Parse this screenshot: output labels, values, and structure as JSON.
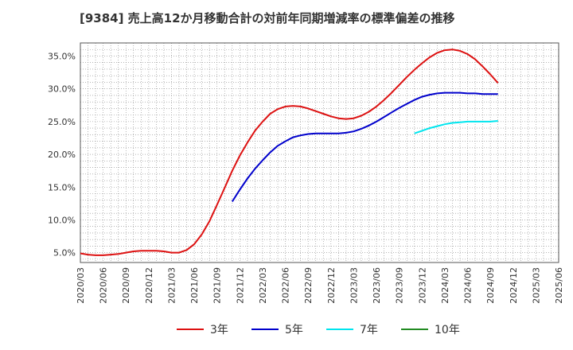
{
  "chart_data": {
    "type": "line",
    "title": "[9384]  売上高12か月移動合計の対前年同期増減率の標準偏差の推移",
    "xlabel": "",
    "ylabel": "",
    "ylim": [
      3.5,
      37.0
    ],
    "xlim": [
      "2020/03",
      "2025/06"
    ],
    "grid": true,
    "legend_position": "bottom",
    "y_ticks": [
      5.0,
      10.0,
      15.0,
      20.0,
      25.0,
      30.0,
      35.0
    ],
    "y_tick_labels": [
      "5.0%",
      "10.0%",
      "15.0%",
      "20.0%",
      "25.0%",
      "30.0%",
      "35.0%"
    ],
    "x_tick_labels": [
      "2020/03",
      "2020/06",
      "2020/09",
      "2020/12",
      "2021/03",
      "2021/06",
      "2021/09",
      "2021/12",
      "2022/03",
      "2022/06",
      "2022/09",
      "2022/12",
      "2023/03",
      "2023/06",
      "2023/09",
      "2023/12",
      "2024/03",
      "2024/06",
      "2024/09",
      "2024/12",
      "2025/03",
      "2025/06"
    ],
    "series": [
      {
        "name": "3年",
        "color": "#dd1111",
        "points": [
          [
            "2020/03",
            4.9
          ],
          [
            "2020/04",
            4.7
          ],
          [
            "2020/05",
            4.6
          ],
          [
            "2020/06",
            4.6
          ],
          [
            "2020/07",
            4.7
          ],
          [
            "2020/08",
            4.8
          ],
          [
            "2020/09",
            5.0
          ],
          [
            "2020/10",
            5.2
          ],
          [
            "2020/11",
            5.3
          ],
          [
            "2020/12",
            5.3
          ],
          [
            "2021/01",
            5.3
          ],
          [
            "2021/02",
            5.2
          ],
          [
            "2021/03",
            5.0
          ],
          [
            "2021/04",
            5.0
          ],
          [
            "2021/05",
            5.4
          ],
          [
            "2021/06",
            6.3
          ],
          [
            "2021/07",
            7.8
          ],
          [
            "2021/08",
            9.8
          ],
          [
            "2021/09",
            12.3
          ],
          [
            "2021/10",
            14.9
          ],
          [
            "2021/11",
            17.5
          ],
          [
            "2021/12",
            19.8
          ],
          [
            "2022/01",
            21.8
          ],
          [
            "2022/02",
            23.6
          ],
          [
            "2022/03",
            25.0
          ],
          [
            "2022/04",
            26.2
          ],
          [
            "2022/05",
            26.9
          ],
          [
            "2022/06",
            27.3
          ],
          [
            "2022/07",
            27.4
          ],
          [
            "2022/08",
            27.3
          ],
          [
            "2022/09",
            27.0
          ],
          [
            "2022/10",
            26.6
          ],
          [
            "2022/11",
            26.2
          ],
          [
            "2022/12",
            25.8
          ],
          [
            "2023/01",
            25.5
          ],
          [
            "2023/02",
            25.4
          ],
          [
            "2023/03",
            25.5
          ],
          [
            "2023/04",
            25.9
          ],
          [
            "2023/05",
            26.5
          ],
          [
            "2023/06",
            27.3
          ],
          [
            "2023/07",
            28.3
          ],
          [
            "2023/08",
            29.4
          ],
          [
            "2023/09",
            30.6
          ],
          [
            "2023/10",
            31.8
          ],
          [
            "2023/11",
            32.9
          ],
          [
            "2023/12",
            33.9
          ],
          [
            "2024/01",
            34.8
          ],
          [
            "2024/02",
            35.5
          ],
          [
            "2024/03",
            35.9
          ],
          [
            "2024/04",
            36.0
          ],
          [
            "2024/05",
            35.8
          ],
          [
            "2024/06",
            35.3
          ],
          [
            "2024/07",
            34.5
          ],
          [
            "2024/08",
            33.4
          ],
          [
            "2024/09",
            32.2
          ],
          [
            "2024/10",
            30.9
          ]
        ]
      },
      {
        "name": "5年",
        "color": "#0000cc",
        "points": [
          [
            "2021/11",
            12.8
          ],
          [
            "2021/12",
            14.6
          ],
          [
            "2022/01",
            16.3
          ],
          [
            "2022/02",
            17.8
          ],
          [
            "2022/03",
            19.1
          ],
          [
            "2022/04",
            20.3
          ],
          [
            "2022/05",
            21.3
          ],
          [
            "2022/06",
            22.0
          ],
          [
            "2022/07",
            22.6
          ],
          [
            "2022/08",
            22.9
          ],
          [
            "2022/09",
            23.1
          ],
          [
            "2022/10",
            23.2
          ],
          [
            "2022/11",
            23.2
          ],
          [
            "2022/12",
            23.2
          ],
          [
            "2023/01",
            23.2
          ],
          [
            "2023/02",
            23.3
          ],
          [
            "2023/03",
            23.5
          ],
          [
            "2023/04",
            23.9
          ],
          [
            "2023/05",
            24.4
          ],
          [
            "2023/06",
            25.0
          ],
          [
            "2023/07",
            25.7
          ],
          [
            "2023/08",
            26.4
          ],
          [
            "2023/09",
            27.1
          ],
          [
            "2023/10",
            27.7
          ],
          [
            "2023/11",
            28.3
          ],
          [
            "2023/12",
            28.8
          ],
          [
            "2024/01",
            29.1
          ],
          [
            "2024/02",
            29.3
          ],
          [
            "2024/03",
            29.4
          ],
          [
            "2024/04",
            29.4
          ],
          [
            "2024/05",
            29.4
          ],
          [
            "2024/06",
            29.3
          ],
          [
            "2024/07",
            29.3
          ],
          [
            "2024/08",
            29.2
          ],
          [
            "2024/09",
            29.2
          ],
          [
            "2024/10",
            29.2
          ]
        ]
      },
      {
        "name": "7年",
        "color": "#00e5ee",
        "points": [
          [
            "2023/11",
            23.2
          ],
          [
            "2023/12",
            23.6
          ],
          [
            "2024/01",
            24.0
          ],
          [
            "2024/02",
            24.3
          ],
          [
            "2024/03",
            24.6
          ],
          [
            "2024/04",
            24.8
          ],
          [
            "2024/05",
            24.9
          ],
          [
            "2024/06",
            25.0
          ],
          [
            "2024/07",
            25.0
          ],
          [
            "2024/08",
            25.0
          ],
          [
            "2024/09",
            25.0
          ],
          [
            "2024/10",
            25.1
          ]
        ]
      },
      {
        "name": "10年",
        "color": "#228b22",
        "points": []
      }
    ]
  }
}
